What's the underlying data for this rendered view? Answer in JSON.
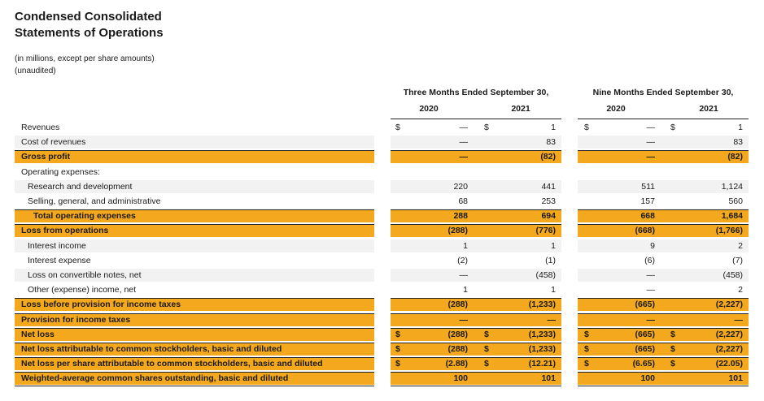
{
  "title_line1": "Condensed Consolidated",
  "title_line2": "Statements of Operations",
  "note_line1": "(in millions, except per share amounts)",
  "note_line2": "(unaudited)",
  "period_three": "Three Months Ended September 30,",
  "period_nine": "Nine Months Ended September 30,",
  "year_2020": "2020",
  "year_2021": "2021",
  "currency_symbol": "$",
  "rows": [
    {
      "label": "Revenues",
      "values": [
        "—",
        "1",
        "—",
        "1"
      ],
      "dollar": true
    },
    {
      "label": "Cost of revenues",
      "values": [
        "—",
        "83",
        "—",
        "83"
      ]
    },
    {
      "label": "Gross profit",
      "values": [
        "—",
        "(82)",
        "—",
        "(82)"
      ]
    },
    {
      "label": "Operating expenses:",
      "values": [
        "",
        "",
        "",
        ""
      ]
    },
    {
      "label": "Research and development",
      "values": [
        "220",
        "441",
        "511",
        "1,124"
      ]
    },
    {
      "label": "Selling, general, and administrative",
      "values": [
        "68",
        "253",
        "157",
        "560"
      ]
    },
    {
      "label": "Total operating expenses",
      "values": [
        "288",
        "694",
        "668",
        "1,684"
      ]
    },
    {
      "label": "Loss from operations",
      "values": [
        "(288)",
        "(776)",
        "(668)",
        "(1,766)"
      ]
    },
    {
      "label": "Interest income",
      "values": [
        "1",
        "1",
        "9",
        "2"
      ]
    },
    {
      "label": "Interest expense",
      "values": [
        "(2)",
        "(1)",
        "(6)",
        "(7)"
      ]
    },
    {
      "label": "Loss on convertible notes, net",
      "values": [
        "—",
        "(458)",
        "—",
        "(458)"
      ]
    },
    {
      "label": "Other (expense) income, net",
      "values": [
        "1",
        "1",
        "—",
        "2"
      ]
    },
    {
      "label": "Loss before provision for income taxes",
      "values": [
        "(288)",
        "(1,233)",
        "(665)",
        "(2,227)"
      ]
    },
    {
      "label": "Provision for income taxes",
      "values": [
        "—",
        "—",
        "—",
        "—"
      ]
    },
    {
      "label": "Net loss",
      "values": [
        "(288)",
        "(1,233)",
        "(665)",
        "(2,227)"
      ],
      "dollar": true
    },
    {
      "label": "Net loss attributable to common stockholders, basic and diluted",
      "values": [
        "(288)",
        "(1,233)",
        "(665)",
        "(2,227)"
      ],
      "dollar": true
    },
    {
      "label": "Net loss per share attributable to common stockholders, basic and diluted",
      "values": [
        "(2.88)",
        "(12.21)",
        "(6.65)",
        "(22.05)"
      ],
      "dollar": true
    },
    {
      "label": "Weighted-average common shares outstanding, basic and diluted",
      "values": [
        "100",
        "101",
        "100",
        "101"
      ]
    }
  ],
  "colors": {
    "highlight": "#f4a81d",
    "shade": "#f2f2f2"
  }
}
